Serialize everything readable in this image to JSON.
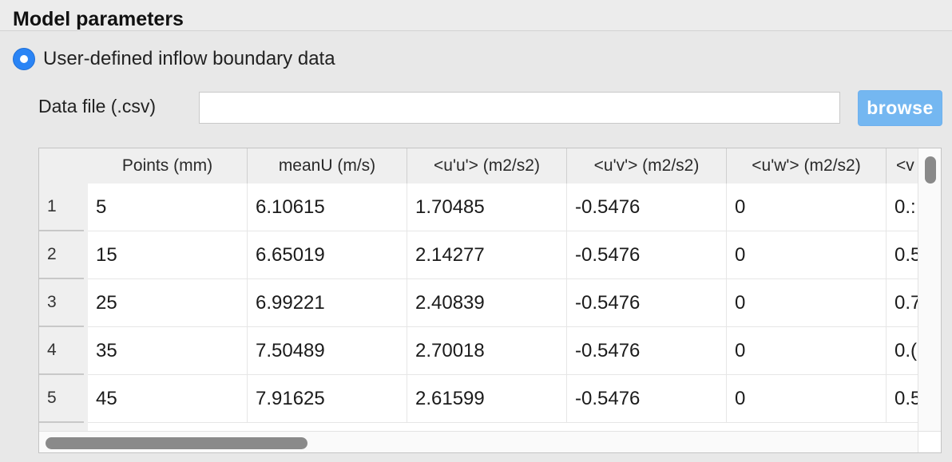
{
  "group": {
    "title": "Model parameters"
  },
  "inflow_option": {
    "label": "User-defined inflow boundary data",
    "selected": true
  },
  "data_file": {
    "label": "Data file (.csv)",
    "value": "",
    "placeholder": ""
  },
  "browse_button": {
    "label": "browse"
  },
  "table": {
    "columns": [
      "Points (mm)",
      "meanU (m/s)",
      "<u'u'> (m2/s2)",
      "<u'v'> (m2/s2)",
      "<u'w'> (m2/s2)",
      "<v"
    ],
    "rows": [
      {
        "num": "1",
        "cells": [
          "5",
          "6.10615",
          "1.70485",
          "-0.5476",
          "0",
          "0.:"
        ]
      },
      {
        "num": "2",
        "cells": [
          "15",
          "6.65019",
          "2.14277",
          "-0.5476",
          "0",
          "0.5"
        ]
      },
      {
        "num": "3",
        "cells": [
          "25",
          "6.99221",
          "2.40839",
          "-0.5476",
          "0",
          "0.7"
        ]
      },
      {
        "num": "4",
        "cells": [
          "35",
          "7.50489",
          "2.70018",
          "-0.5476",
          "0",
          "0.("
        ]
      },
      {
        "num": "5",
        "cells": [
          "45",
          "7.91625",
          "2.61599",
          "-0.5476",
          "0",
          "0.5"
        ]
      }
    ]
  },
  "colors": {
    "accent": "#2a84f5",
    "button": "#74b7f1"
  }
}
